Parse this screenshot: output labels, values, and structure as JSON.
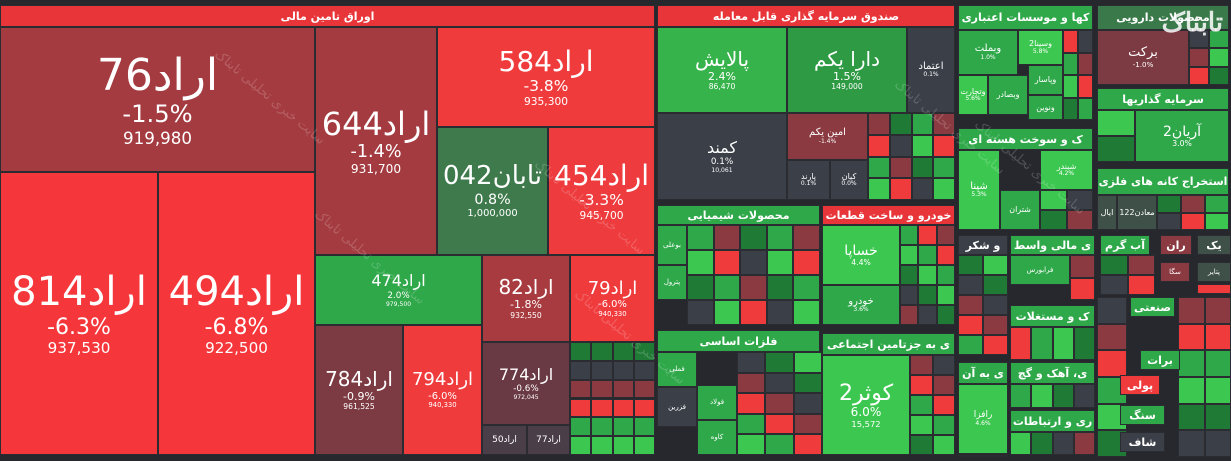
{
  "sectors": [
    {
      "title": "اوراق تامین مالی",
      "tiles": [
        {
          "name": "اراد76",
          "change": "-1.5%",
          "price": "919,980"
        },
        {
          "name": "اراد644",
          "change": "-1.4%",
          "price": "931,700"
        },
        {
          "name": "اراد584",
          "change": "-3.8%",
          "price": "935,300"
        },
        {
          "name": "تابان042",
          "change": "0.8%",
          "price": "1,000,000"
        },
        {
          "name": "اراد454",
          "change": "-3.3%",
          "price": "945,700"
        },
        {
          "name": "اراد814",
          "change": "-6.3%",
          "price": "937,530"
        },
        {
          "name": "اراد494",
          "change": "-6.8%",
          "price": "922,500"
        },
        {
          "name": "اراد474",
          "change": "2.0%",
          "price": "979,500"
        },
        {
          "name": "اراد82",
          "change": "-1.8%",
          "price": "932,550"
        },
        {
          "name": "اراد79",
          "change": "-6.0%",
          "price": "940,330"
        },
        {
          "name": "اراد784",
          "change": "-0.9%",
          "price": "961,525"
        },
        {
          "name": "اراد794",
          "change": "-6.0%",
          "price": "940,330"
        },
        {
          "name": "اراد774",
          "change": "-0.6%",
          "price": "972,045"
        },
        {
          "name": "اراد50"
        },
        {
          "name": "اراد77"
        }
      ]
    },
    {
      "title": "صندوق سرمایه گذاری قابل معامله",
      "tiles": [
        {
          "name": "پالایش",
          "change": "2.4%",
          "price": "86,470"
        },
        {
          "name": "دارا یکم",
          "change": "1.5%",
          "price": "149,000"
        },
        {
          "name": "اعتماد",
          "change": "0.1%"
        },
        {
          "name": "کمند",
          "change": "0.1%",
          "price": "10,061"
        },
        {
          "name": "امین یکم",
          "change": "-1.4%"
        },
        {
          "name": "پارند",
          "change": "0.1%"
        },
        {
          "name": "کیان",
          "change": "0.0%"
        }
      ]
    },
    {
      "title": "محصولات شیمیایی",
      "tiles": [
        {
          "name": "بوعلی"
        },
        {
          "name": "پترول"
        }
      ]
    },
    {
      "title": "خودرو و ساخت قطعات",
      "tiles": [
        {
          "name": "خساپا",
          "change": "4.4%"
        },
        {
          "name": "خودرو",
          "change": "3.6%"
        }
      ]
    },
    {
      "title": "فلزات اساسی",
      "tiles": [
        {
          "name": "فملی"
        },
        {
          "name": "فولاد"
        },
        {
          "name": "فزرین"
        },
        {
          "name": "کاوه"
        }
      ]
    },
    {
      "title": "ی به جزتامین اجتماعی",
      "tiles": [
        {
          "name": "کوثر2",
          "change": "6.0%",
          "price": "15,572"
        }
      ]
    },
    {
      "title": "کها و موسسات اعتباری",
      "tiles": [
        {
          "name": "وبملت",
          "change": "1.0%"
        },
        {
          "name": "وسینا2",
          "change": "5.8%"
        },
        {
          "name": "وتجارت",
          "change": "5.6%"
        },
        {
          "name": "وبصادر"
        },
        {
          "name": "وپاسار"
        },
        {
          "name": "ونوین"
        }
      ]
    },
    {
      "title": "محصولات دارویی",
      "tiles": [
        {
          "name": "برکت",
          "change": "-1.0%"
        }
      ]
    },
    {
      "title": "سرمایه گذاریها",
      "tiles": [
        {
          "name": "آریان2",
          "change": "3.0%"
        }
      ]
    },
    {
      "title": "استخراج کانه های فلزی",
      "tiles": [
        {
          "name": "معادن122"
        },
        {
          "name": "ایال"
        }
      ]
    },
    {
      "title": "ک و سوخت هسته ای",
      "tiles": [
        {
          "name": "شبندر",
          "change": "4.2%"
        },
        {
          "name": "شپنا",
          "change": "5.3%"
        },
        {
          "name": "شتران"
        }
      ]
    },
    {
      "title": "ی مالی واسط",
      "tiles": [
        {
          "name": "فرابورس"
        }
      ]
    },
    {
      "title": "و شکر",
      "tiles": []
    },
    {
      "title": "ک و مستغلات",
      "tiles": []
    },
    {
      "title": "ی به آن",
      "tiles": [
        {
          "name": "رافزا",
          "change": "4.6%"
        }
      ]
    },
    {
      "title": "ی، آهک و گچ",
      "tiles": []
    },
    {
      "title": "ری و ارتباطات",
      "tiles": []
    },
    {
      "title": "آب گرم",
      "tiles": [
        {
          "name": "سگا"
        }
      ]
    },
    {
      "title": "ران",
      "tiles": []
    },
    {
      "title": "یک",
      "tiles": [
        {
          "name": "پتایر"
        }
      ]
    },
    {
      "title": "صنعتی",
      "tiles": []
    },
    {
      "title": "برات",
      "tiles": []
    },
    {
      "title": "پولی",
      "tiles": []
    },
    {
      "title": "سنگ",
      "tiles": []
    },
    {
      "title": "شاف",
      "tiles": []
    }
  ],
  "watermark": {
    "logo": "تابناک",
    "text": "سایت خبری تحلیلی تابناک"
  }
}
